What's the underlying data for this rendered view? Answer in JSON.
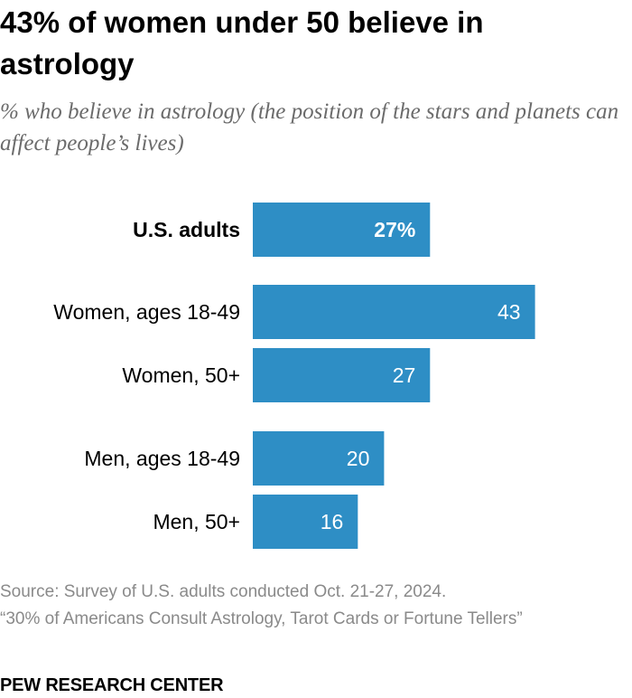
{
  "header": {
    "title": "43% of women under 50 believe in astrology",
    "subtitle": "% who believe in astrology (the position of the stars and planets can affect people’s lives)"
  },
  "chart_data": {
    "type": "bar",
    "orientation": "horizontal",
    "categories": [
      "U.S. adults",
      "Women, ages 18-49",
      "Women, 50+",
      "Men, ages 18-49",
      "Men, 50+"
    ],
    "values": [
      27,
      43,
      27,
      20,
      16
    ],
    "value_labels": [
      "27%",
      "43",
      "27",
      "20",
      "16"
    ],
    "emphasized_category": "U.S. adults",
    "groups": [
      [
        "U.S. adults"
      ],
      [
        "Women, ages 18-49",
        "Women, 50+"
      ],
      [
        "Men, ages 18-49",
        "Men, 50+"
      ]
    ],
    "xlim": [
      0,
      100
    ],
    "grid": false,
    "legend": "none",
    "bar_color": "#2e8ec5",
    "label_color": "#ffffff"
  },
  "footer": {
    "source": "Source: Survey of U.S. adults conducted Oct. 21-27, 2024.",
    "report": "“30% of Americans Consult Astrology, Tarot Cards or Fortune Tellers”",
    "brand": "PEW RESEARCH CENTER"
  }
}
